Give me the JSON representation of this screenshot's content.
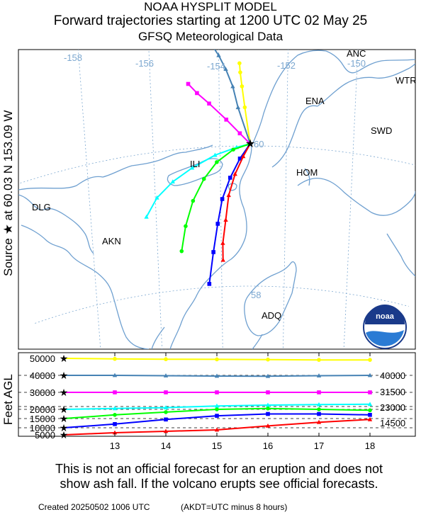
{
  "header": {
    "line1": "NOAA HYSPLIT MODEL",
    "line2": "Forward trajectories starting at 1200 UTC 02 May 25",
    "line3": "GFSQ Meteorological Data"
  },
  "source_label": "Source ★ at 60.03 N 153.09 W",
  "map": {
    "lon_labels": [
      "-158",
      "-156",
      "-154",
      "-152",
      "-150"
    ],
    "lat_labels": [
      "60",
      "58"
    ],
    "places": [
      "ANC",
      "WTR",
      "ENA",
      "SWD",
      "ILI",
      "HOM",
      "DLG",
      "AKN",
      "ADQ"
    ],
    "logo_text": "noaa"
  },
  "height_axis": {
    "ylabel": "Feet AGL",
    "left_ticks": [
      "50000",
      "40000",
      "30000",
      "20000",
      "15000",
      "10000",
      "5000"
    ],
    "right_labels": [
      "40000",
      "31500",
      "23000",
      "14500"
    ]
  },
  "footer": {
    "disclaimer_line1": "This is not an official forecast for an eruption and does not",
    "disclaimer_line2": "show ash fall. If the volcano erupts see official forecasts.",
    "created": "Created 20250502 1006 UTC",
    "akdt": "(AKDT=UTC minus 8 hours)"
  },
  "colors": {
    "yellow": "#ffff00",
    "steelblue": "#4682b4",
    "magenta": "#ff00ff",
    "cyan": "#00ffff",
    "green": "#00ff00",
    "blue": "#0000ff",
    "red": "#ff0000",
    "coast": "#6fa0d0",
    "grid": "#7da8d0"
  },
  "chart_data": {
    "type": "line",
    "x_ticks": [
      13,
      14,
      15,
      16,
      17,
      18
    ],
    "xlim": [
      12,
      18
    ],
    "series": [
      {
        "color": "yellow",
        "marker": "circle",
        "start_ft": 50000,
        "path": [
          [
            -153.09,
            60.03
          ],
          [
            -153.25,
            60.55
          ],
          [
            -153.33,
            60.85
          ],
          [
            -153.38,
            61.05
          ],
          [
            -153.4,
            61.18
          ]
        ],
        "heights": [
          [
            12,
            50000
          ],
          [
            13,
            49700
          ],
          [
            14,
            49500
          ],
          [
            15,
            49400
          ],
          [
            16,
            49300
          ],
          [
            17,
            49100
          ],
          [
            18,
            49100
          ]
        ]
      },
      {
        "color": "steelblue",
        "marker": "triangle",
        "start_ft": 40000,
        "path": [
          [
            -153.09,
            60.03
          ],
          [
            -153.45,
            60.55
          ],
          [
            -153.6,
            60.85
          ],
          [
            -153.8,
            61.1
          ],
          [
            -154.0,
            61.3
          ],
          [
            -154.25,
            61.5
          ]
        ],
        "heights": [
          [
            12,
            40000
          ],
          [
            13,
            40000
          ],
          [
            14,
            39800
          ],
          [
            15,
            39600
          ],
          [
            16,
            39500
          ],
          [
            17,
            39800
          ],
          [
            18,
            40000
          ]
        ]
      },
      {
        "color": "magenta",
        "marker": "square",
        "start_ft": 30000,
        "path": [
          [
            -153.09,
            60.03
          ],
          [
            -153.4,
            60.18
          ],
          [
            -153.8,
            60.38
          ],
          [
            -154.3,
            60.62
          ],
          [
            -154.65,
            60.78
          ],
          [
            -154.9,
            60.92
          ]
        ],
        "heights": [
          [
            12,
            30000
          ],
          [
            13,
            30000
          ],
          [
            14,
            30000
          ],
          [
            15,
            30000
          ],
          [
            16,
            30000
          ],
          [
            17,
            30000
          ],
          [
            18,
            30000
          ]
        ]
      },
      {
        "color": "cyan",
        "marker": "triangle",
        "start_ft": 20000,
        "path": [
          [
            -153.09,
            60.03
          ],
          [
            -153.5,
            59.98
          ],
          [
            -154.15,
            59.88
          ],
          [
            -154.85,
            59.72
          ],
          [
            -155.45,
            59.55
          ],
          [
            -155.95,
            59.35
          ],
          [
            -156.3,
            59.1
          ]
        ],
        "heights": [
          [
            12,
            20000
          ],
          [
            13,
            20500
          ],
          [
            14,
            21000
          ],
          [
            15,
            22000
          ],
          [
            16,
            22500
          ],
          [
            17,
            22800
          ],
          [
            18,
            23000
          ]
        ]
      },
      {
        "color": "green",
        "marker": "circle",
        "start_ft": 15000,
        "path": [
          [
            -153.09,
            60.03
          ],
          [
            -153.6,
            59.95
          ],
          [
            -154.1,
            59.78
          ],
          [
            -154.5,
            59.55
          ],
          [
            -154.85,
            59.25
          ],
          [
            -155.1,
            58.9
          ],
          [
            -155.25,
            58.55
          ]
        ],
        "heights": [
          [
            12,
            15000
          ],
          [
            13,
            17000
          ],
          [
            14,
            18500
          ],
          [
            15,
            20000
          ],
          [
            16,
            20500
          ],
          [
            17,
            20000
          ],
          [
            18,
            19500
          ]
        ]
      },
      {
        "color": "blue",
        "marker": "square",
        "start_ft": 10000,
        "path": [
          [
            -153.09,
            60.03
          ],
          [
            -153.4,
            59.82
          ],
          [
            -153.7,
            59.55
          ],
          [
            -153.95,
            59.25
          ],
          [
            -154.1,
            58.9
          ],
          [
            -154.25,
            58.5
          ],
          [
            -154.4,
            58.05
          ]
        ],
        "heights": [
          [
            12,
            10000
          ],
          [
            13,
            12000
          ],
          [
            14,
            14500
          ],
          [
            15,
            16500
          ],
          [
            16,
            17500
          ],
          [
            17,
            17500
          ],
          [
            18,
            17000
          ]
        ]
      },
      {
        "color": "red",
        "marker": "triangle",
        "start_ft": 5000,
        "path": [
          [
            -153.09,
            60.03
          ],
          [
            -153.3,
            59.85
          ],
          [
            -153.55,
            59.6
          ],
          [
            -153.75,
            59.3
          ],
          [
            -153.85,
            58.95
          ],
          [
            -153.95,
            58.62
          ],
          [
            -153.95,
            58.38
          ]
        ],
        "heights": [
          [
            12,
            5000
          ],
          [
            13,
            6500
          ],
          [
            14,
            7500
          ],
          [
            15,
            8500
          ],
          [
            16,
            11000
          ],
          [
            17,
            13000
          ],
          [
            18,
            14500
          ]
        ]
      }
    ]
  }
}
